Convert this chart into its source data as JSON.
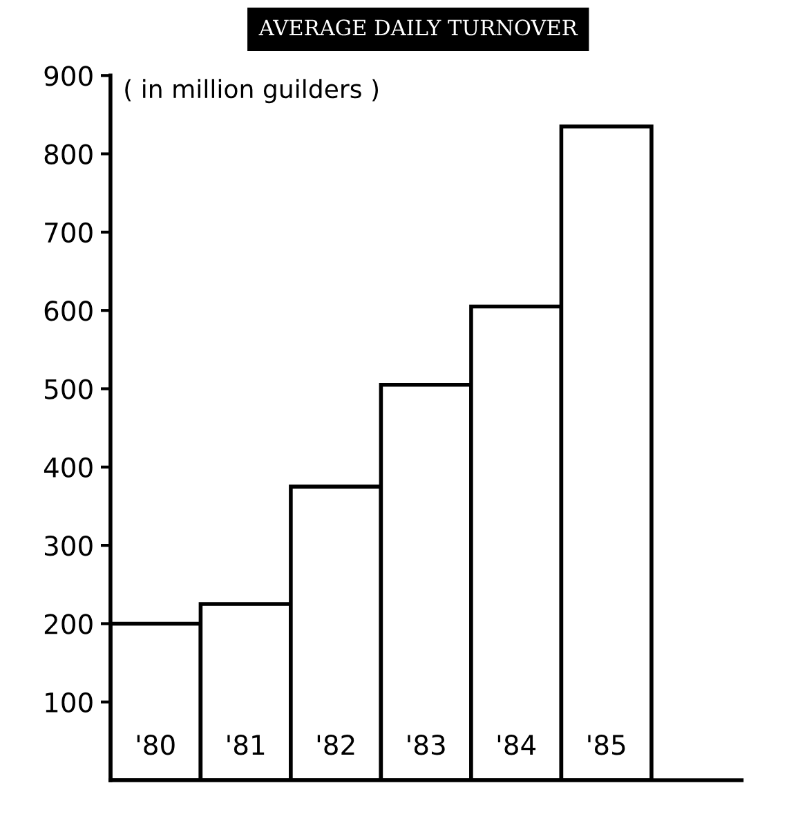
{
  "chart_data": {
    "type": "bar",
    "title": "AVERAGE DAILY TURNOVER",
    "subtitle": "( in million guilders )",
    "categories": [
      "'80",
      "'81",
      "'82",
      "'83",
      "'84",
      "'85"
    ],
    "values": [
      200,
      225,
      375,
      505,
      605,
      835
    ],
    "color": "#ffffff",
    "ylim": [
      0,
      900
    ],
    "yticks": [
      100,
      200,
      300,
      400,
      500,
      600,
      700,
      800,
      900
    ],
    "grid": false,
    "legend": false
  }
}
